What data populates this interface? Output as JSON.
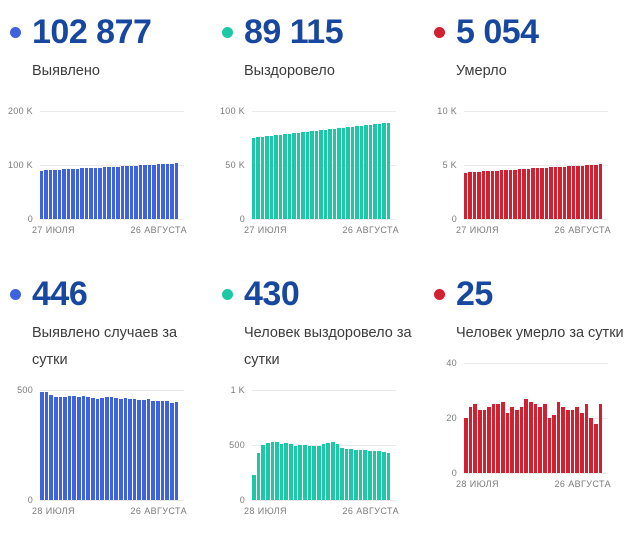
{
  "colors": {
    "blue": "#3f63de",
    "teal": "#1cc8a5",
    "red": "#d32030",
    "number_text": "#17479e",
    "label_text": "#3c3c3c",
    "axis_text": "#7b7b7b",
    "gridline": "#eaeaea"
  },
  "panels": [
    {
      "value": "102 877",
      "label": "Выявлено",
      "dot_color": "#3f63de"
    },
    {
      "value": "89 115",
      "label": "Выздоровело",
      "dot_color": "#1cc8a5"
    },
    {
      "value": "5 054",
      "label": "Умерло",
      "dot_color": "#d32030"
    },
    {
      "value": "446",
      "label": "Выявлено случаев за сутки",
      "dot_color": "#3f63de"
    },
    {
      "value": "430",
      "label": "Человек выздоровело за сутки",
      "dot_color": "#1cc8a5"
    },
    {
      "value": "25",
      "label": "Человек умерло за сутки",
      "dot_color": "#d32030"
    }
  ],
  "chart_data": [
    {
      "type": "bar",
      "title": "Выявлено (всего)",
      "color": "#3f63de",
      "x_start_label": "27 ИЮЛЯ",
      "x_end_label": "26 АВГУСТА",
      "y_ticks": [
        "200 K",
        "100 K",
        "0"
      ],
      "ymax": 200000,
      "ylim": [
        0,
        200000
      ],
      "grid": true,
      "values": [
        89550,
        89995,
        90440,
        90885,
        91330,
        91775,
        92220,
        92665,
        93110,
        93555,
        94000,
        94445,
        94890,
        95335,
        95780,
        96225,
        96670,
        97115,
        97560,
        98005,
        98450,
        98895,
        99340,
        99785,
        100230,
        100675,
        101120,
        101565,
        102010,
        102432,
        102877
      ]
    },
    {
      "type": "bar",
      "title": "Выздоровело (всего)",
      "color": "#1cc8a5",
      "x_start_label": "27 ИЮЛЯ",
      "x_end_label": "26 АВГУСТА",
      "y_ticks": [
        "100 K",
        "50 K",
        "0"
      ],
      "ymax": 100000,
      "ylim": [
        0,
        100000
      ],
      "grid": true,
      "values": [
        75300,
        75760,
        76221,
        76681,
        77142,
        77602,
        78063,
        78523,
        78984,
        79444,
        79905,
        80365,
        80826,
        81286,
        81747,
        82207,
        82668,
        83128,
        83589,
        84049,
        84510,
        84970,
        85431,
        85891,
        86352,
        86812,
        87273,
        87733,
        88194,
        88654,
        89115
      ]
    },
    {
      "type": "bar",
      "title": "Умерло (всего)",
      "color": "#d32030",
      "x_start_label": "27 ИЮЛЯ",
      "x_end_label": "26 АВГУСТА",
      "y_ticks": [
        "10 K",
        "5 K",
        "0"
      ],
      "ymax": 10000,
      "ylim": [
        0,
        10000
      ],
      "grid": true,
      "values": [
        4304,
        4329,
        4354,
        4379,
        4404,
        4429,
        4454,
        4479,
        4504,
        4529,
        4554,
        4579,
        4604,
        4629,
        4654,
        4679,
        4704,
        4729,
        4754,
        4779,
        4804,
        4829,
        4854,
        4879,
        4904,
        4929,
        4954,
        4979,
        5004,
        5029,
        5054
      ]
    },
    {
      "type": "bar",
      "title": "Выявлено случаев за сутки",
      "color": "#3f63de",
      "x_start_label": "28 ИЮЛЯ",
      "x_end_label": "26 АВГУСТА",
      "y_ticks": [
        "500",
        "0"
      ],
      "ymax": 500,
      "ylim": [
        0,
        500
      ],
      "grid": true,
      "values": [
        491,
        489,
        477,
        470,
        467,
        469,
        472,
        471,
        470,
        472,
        469,
        462,
        458,
        465,
        466,
        468,
        464,
        460,
        462,
        458,
        461,
        456,
        453,
        457,
        452,
        450,
        448,
        449,
        443,
        446
      ]
    },
    {
      "type": "bar",
      "title": "Человек выздоровело за сутки",
      "color": "#1cc8a5",
      "x_start_label": "28 ИЮЛЯ",
      "x_end_label": "26 АВГУСТА",
      "y_ticks": [
        "1 K",
        "500",
        "0"
      ],
      "ymax": 1000,
      "ylim": [
        0,
        1000
      ],
      "grid": true,
      "values": [
        225,
        425,
        500,
        520,
        530,
        525,
        510,
        515,
        505,
        495,
        500,
        498,
        495,
        490,
        495,
        505,
        520,
        530,
        510,
        470,
        465,
        462,
        458,
        455,
        452,
        450,
        448,
        445,
        432,
        430
      ]
    },
    {
      "type": "bar",
      "title": "Человек умерло за сутки",
      "color": "#d32030",
      "x_start_label": "28 ИЮЛЯ",
      "x_end_label": "26 АВГУСТА",
      "y_ticks": [
        "40",
        "20",
        "0"
      ],
      "ymax": 40,
      "ylim": [
        0,
        40
      ],
      "grid": true,
      "values": [
        20,
        24,
        25,
        23,
        23,
        24,
        25,
        25,
        26,
        22,
        24,
        23,
        24,
        27,
        26,
        25,
        24,
        25,
        20,
        21,
        26,
        24,
        23,
        23,
        24,
        22,
        25,
        20,
        18,
        25
      ]
    }
  ]
}
